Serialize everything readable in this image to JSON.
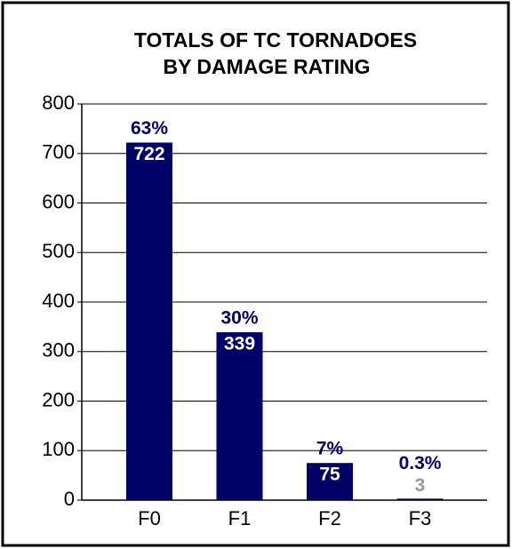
{
  "chart_data": {
    "type": "bar",
    "title": [
      "TOTALS OF TC TORNADOES",
      "BY DAMAGE RATING"
    ],
    "categories": [
      "F0",
      "F1",
      "F2",
      "F3"
    ],
    "values": [
      722,
      339,
      75,
      3
    ],
    "share_labels": [
      "63%",
      "30%",
      "7%",
      "0.3%"
    ],
    "value_label_colors": [
      "#ffffff",
      "#ffffff",
      "#ffffff",
      "#999999"
    ],
    "color": "#000066",
    "label_color": "#000066",
    "ylim": [
      0,
      800
    ],
    "yticks": [
      0,
      100,
      200,
      300,
      400,
      500,
      600,
      700,
      800
    ],
    "grid": true
  }
}
